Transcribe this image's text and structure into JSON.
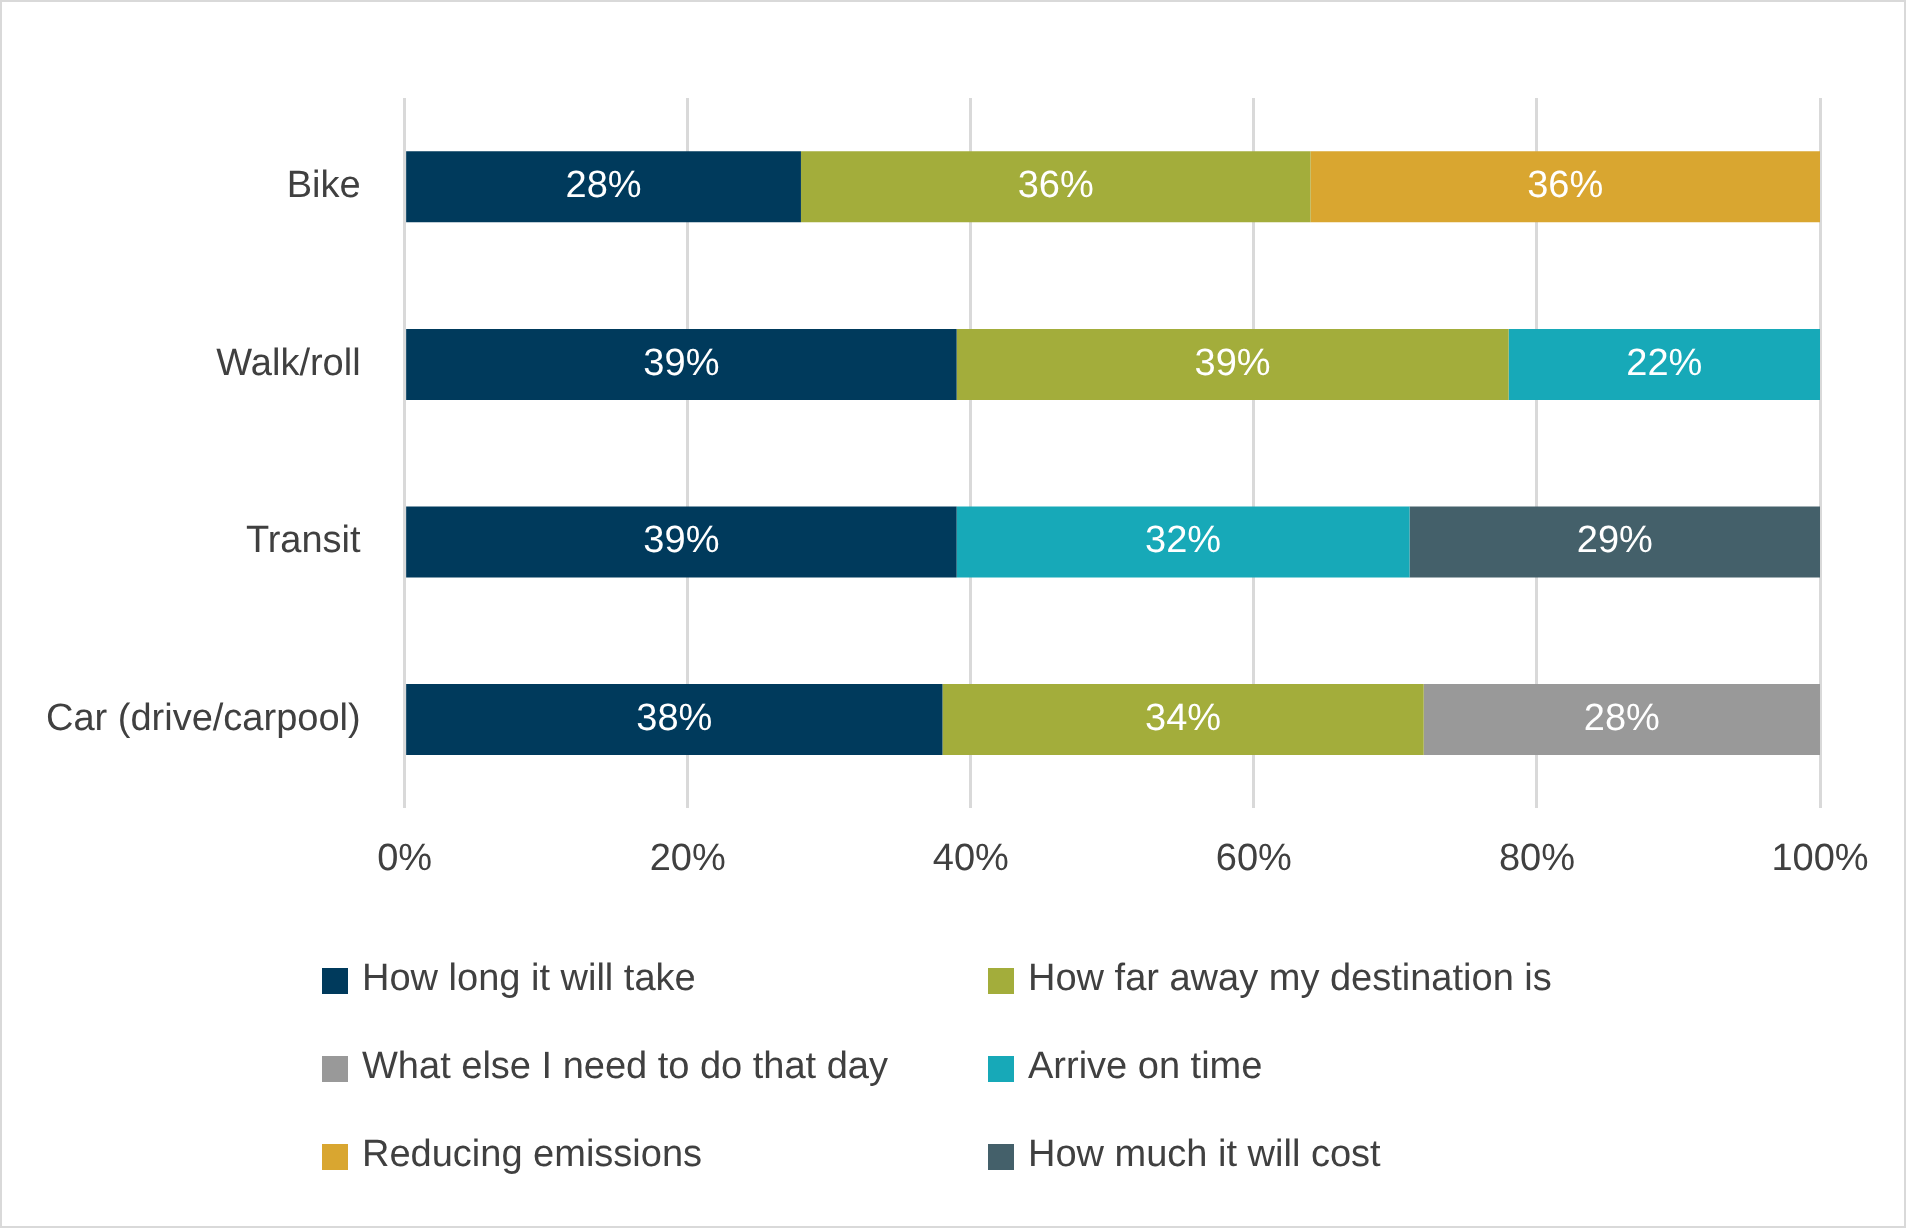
{
  "chart_data": {
    "type": "bar",
    "orientation": "horizontal",
    "stacked": true,
    "categories": [
      "Bike",
      "Walk/roll",
      "Transit",
      "Car (drive/carpool)"
    ],
    "series": [
      {
        "name": "How long it will take",
        "color": "#003a5c",
        "values": [
          28,
          39,
          39,
          38
        ],
        "value_labels": [
          "28%",
          "39%",
          "39%",
          "38%"
        ]
      },
      {
        "name": "How far away my destination is",
        "color": "#a3ad3b",
        "values": [
          36,
          39,
          null,
          34
        ],
        "value_labels": [
          "36%",
          "39%",
          null,
          "34%"
        ]
      },
      {
        "name": "What else I need to do that day",
        "color": "#999999",
        "values": [
          null,
          null,
          null,
          28
        ],
        "value_labels": [
          null,
          null,
          null,
          "28%"
        ]
      },
      {
        "name": "Arrive on time",
        "color": "#17a9b8",
        "values": [
          null,
          22,
          32,
          null
        ],
        "value_labels": [
          null,
          "22%",
          "32%",
          null
        ]
      },
      {
        "name": "Reducing emissions",
        "color": "#d9a630",
        "values": [
          36,
          null,
          null,
          null
        ],
        "value_labels": [
          "36%",
          null,
          null,
          null
        ]
      },
      {
        "name": "How much it will cost",
        "color": "#44606a",
        "values": [
          null,
          null,
          29,
          null
        ],
        "value_labels": [
          null,
          null,
          "29%",
          null
        ]
      }
    ],
    "xlim": [
      0,
      100
    ],
    "xticks": [
      {
        "value": 0,
        "label": "0%"
      },
      {
        "value": 20,
        "label": "20%"
      },
      {
        "value": 40,
        "label": "40%"
      },
      {
        "value": 60,
        "label": "60%"
      },
      {
        "value": 80,
        "label": "80%"
      },
      {
        "value": 100,
        "label": "100%"
      }
    ],
    "grid": "x",
    "legend": "bottom"
  }
}
